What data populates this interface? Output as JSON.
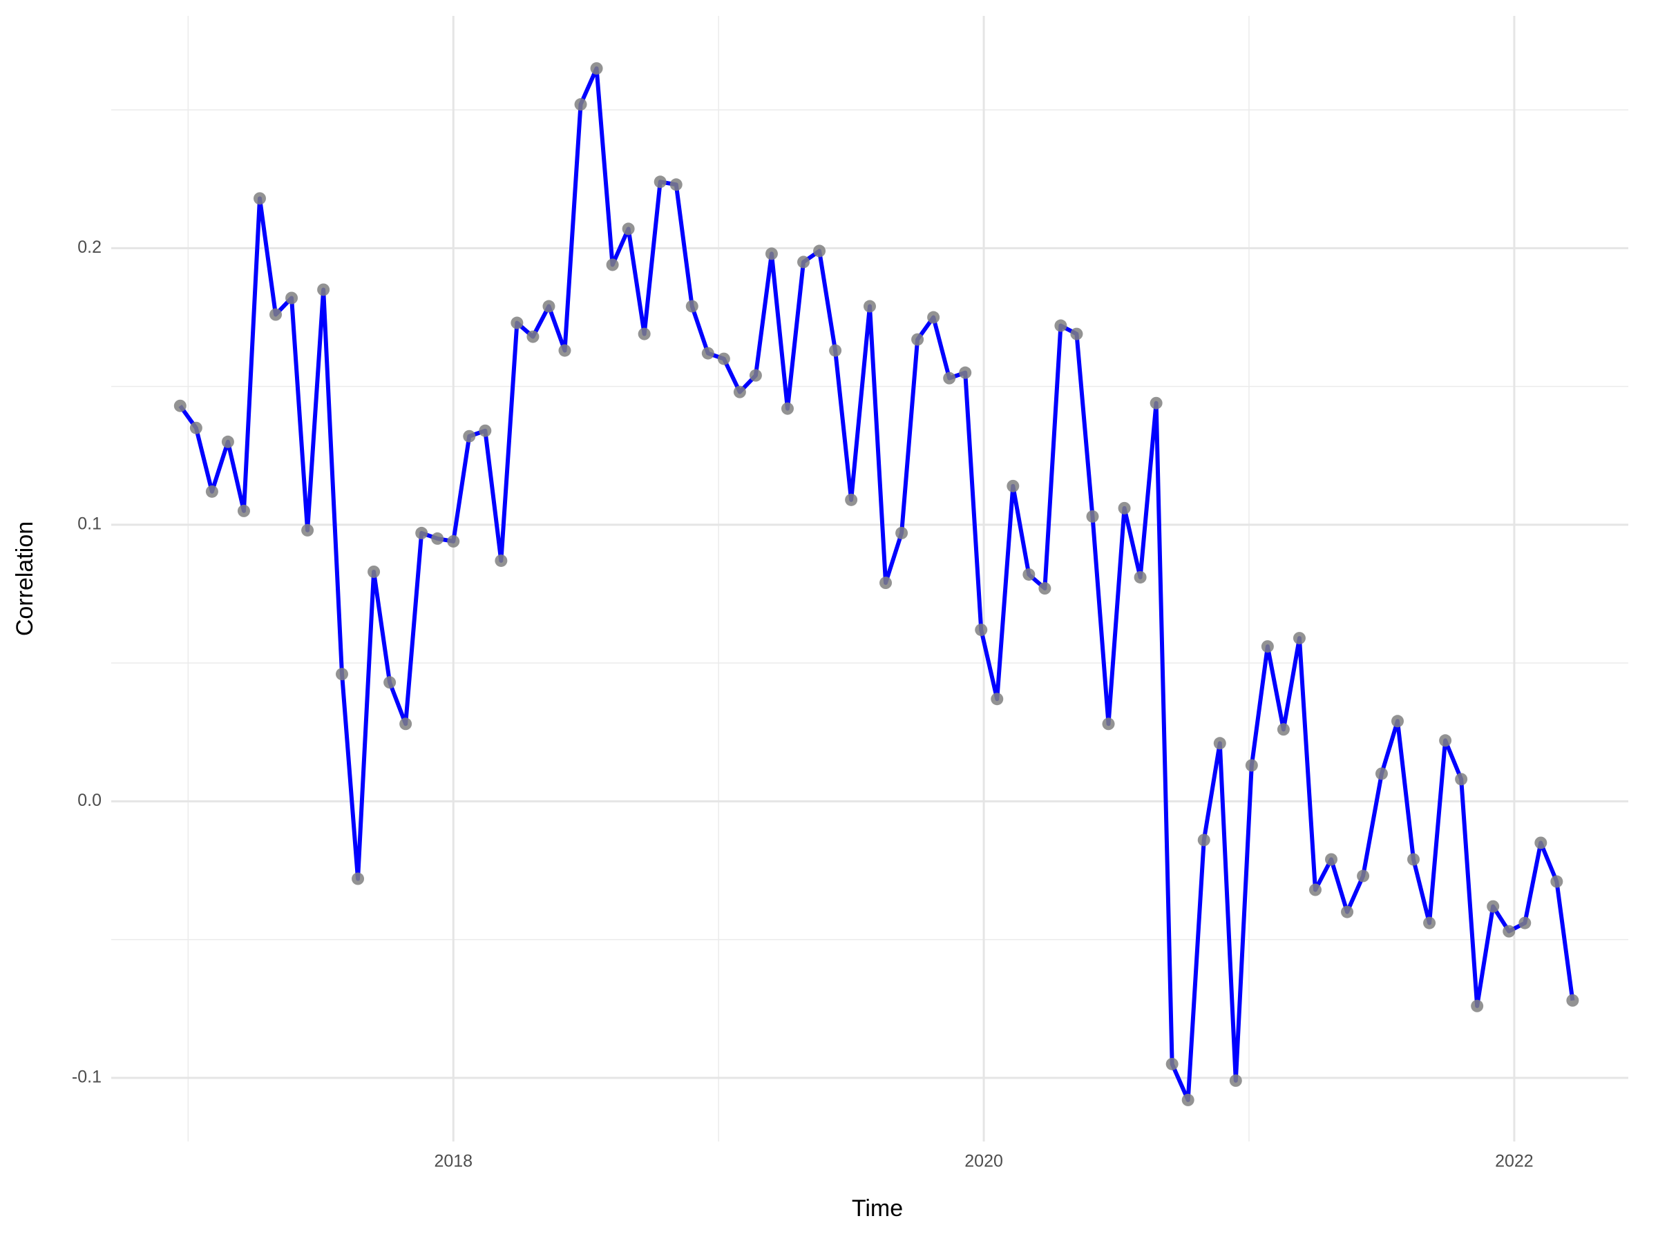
{
  "chart_data": {
    "type": "line",
    "x_label": "Time",
    "y_label": "Correlation",
    "x": [
      2016.97,
      2017.03,
      2017.09,
      2017.15,
      2017.21,
      2017.27,
      2017.33,
      2017.39,
      2017.45,
      2017.51,
      2017.58,
      2017.64,
      2017.7,
      2017.76,
      2017.82,
      2017.88,
      2017.94,
      2018.0,
      2018.06,
      2018.12,
      2018.18,
      2018.24,
      2018.3,
      2018.36,
      2018.42,
      2018.48,
      2018.54,
      2018.6,
      2018.66,
      2018.72,
      2018.78,
      2018.84,
      2018.9,
      2018.96,
      2019.02,
      2019.08,
      2019.14,
      2019.2,
      2019.26,
      2019.32,
      2019.38,
      2019.44,
      2019.5,
      2019.57,
      2019.63,
      2019.69,
      2019.75,
      2019.81,
      2019.87,
      2019.93,
      2019.99,
      2020.05,
      2020.11,
      2020.17,
      2020.23,
      2020.29,
      2020.35,
      2020.41,
      2020.47,
      2020.53,
      2020.59,
      2020.65,
      2020.71,
      2020.77,
      2020.83,
      2020.89,
      2020.95,
      2021.01,
      2021.07,
      2021.13,
      2021.19,
      2021.25,
      2021.31,
      2021.37,
      2021.43,
      2021.5,
      2021.56,
      2021.62,
      2021.68,
      2021.74,
      2021.8,
      2021.86,
      2021.92,
      2021.98,
      2022.04,
      2022.1,
      2022.16,
      2022.22
    ],
    "values": [
      0.143,
      0.135,
      0.112,
      0.13,
      0.105,
      0.218,
      0.176,
      0.182,
      0.098,
      0.185,
      0.046,
      -0.028,
      0.083,
      0.043,
      0.028,
      0.097,
      0.095,
      0.094,
      0.132,
      0.134,
      0.087,
      0.173,
      0.168,
      0.179,
      0.163,
      0.252,
      0.265,
      0.194,
      0.207,
      0.169,
      0.224,
      0.223,
      0.179,
      0.162,
      0.16,
      0.148,
      0.154,
      0.198,
      0.142,
      0.195,
      0.199,
      0.163,
      0.109,
      0.179,
      0.079,
      0.097,
      0.167,
      0.175,
      0.153,
      0.155,
      0.062,
      0.037,
      0.114,
      0.082,
      0.077,
      0.172,
      0.169,
      0.103,
      0.028,
      0.106,
      0.081,
      0.144,
      -0.095,
      -0.108,
      -0.014,
      0.021,
      -0.101,
      0.013,
      0.056,
      0.026,
      0.059,
      -0.032,
      -0.021,
      -0.04,
      -0.027,
      0.01,
      0.029,
      -0.021,
      -0.044,
      0.022,
      0.008,
      -0.074,
      -0.038,
      -0.047,
      -0.044,
      -0.015,
      -0.029,
      -0.072
    ],
    "color": "#0000ff",
    "point_color": "#808080",
    "xlim": [
      2016.71,
      2022.43
    ],
    "xticks": [
      2018,
      2020,
      2022
    ],
    "xminor": [
      2017,
      2019,
      2021
    ],
    "ylim": [
      -0.123,
      0.284
    ],
    "yticks": [
      {
        "value": -0.1,
        "label": "-0.1"
      },
      {
        "value": 0,
        "label": "0.0"
      },
      0.1,
      0.2
    ],
    "yminor": [
      -0.05,
      0.05,
      0.15,
      0.25
    ],
    "grid": true
  }
}
